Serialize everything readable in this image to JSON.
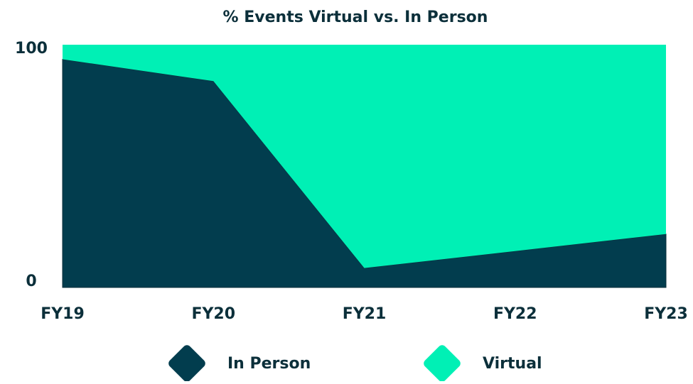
{
  "chart_data": {
    "type": "stacked_area",
    "title": "% Events Virtual vs. In Person",
    "categories": [
      "FY19",
      "FY20",
      "FY21",
      "FY22",
      "FY23"
    ],
    "series": [
      {
        "name": "In Person",
        "color": "#023d4e",
        "values": [
          94,
          85,
          8,
          15,
          22
        ]
      },
      {
        "name": "Virtual",
        "color": "#00f0b5",
        "values": [
          6,
          15,
          92,
          85,
          78
        ]
      }
    ],
    "ylim": [
      0,
      100
    ],
    "yticks": [
      0,
      100
    ],
    "grid": false
  }
}
